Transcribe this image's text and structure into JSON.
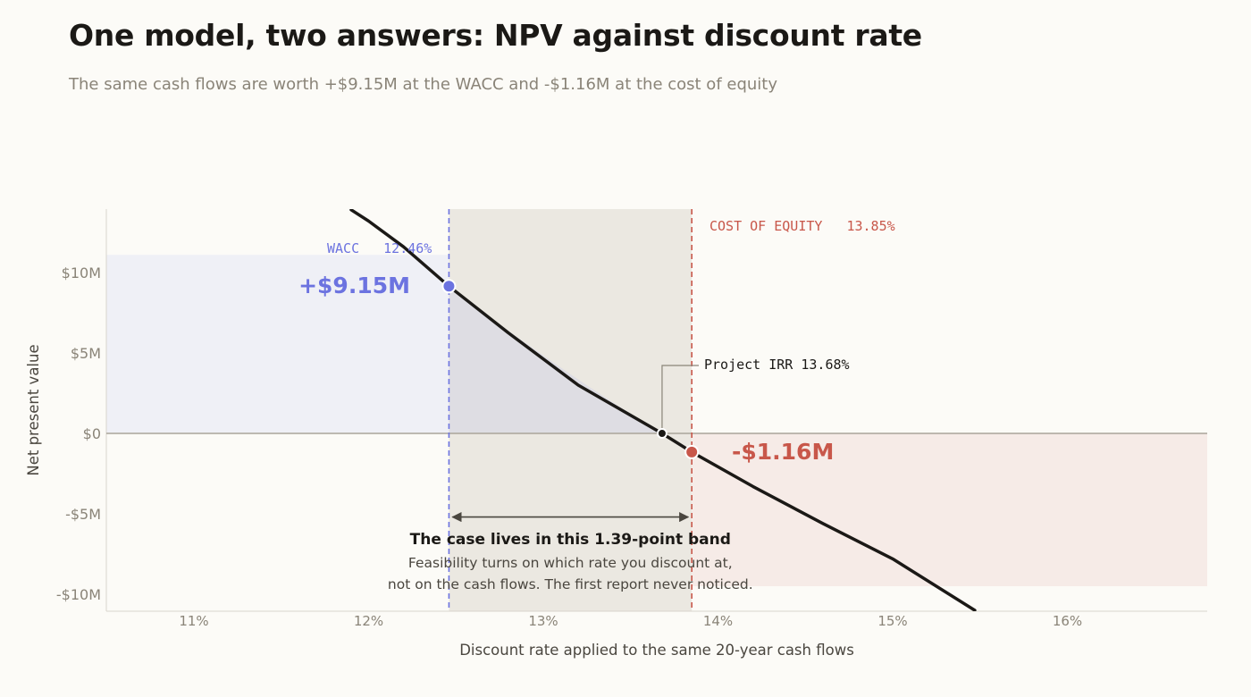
{
  "title": "One model, two answers: NPV against discount rate",
  "subtitle": "The same cash flows are worth +$9.15M at the WACC and -$1.16M at the cost of equity",
  "colors": {
    "background": "#fcfbf7",
    "curve": "#1b1916",
    "wacc": "#6c73e0",
    "cost_of_equity": "#c8574a",
    "band_fill": "#ebe8e1",
    "positive_fill": "#eff0f6",
    "negative_fill": "#f6ebe7",
    "axis_text": "#8a8478"
  },
  "chart_data": {
    "type": "line",
    "xlabel": "Discount rate applied to the same 20-year cash flows",
    "ylabel": "Net present value",
    "xlim": [
      10.5,
      16.8
    ],
    "ylim": [
      -11,
      14
    ],
    "x_ticks": [
      11,
      12,
      13,
      14,
      15,
      16
    ],
    "x_tick_labels": [
      "11%",
      "12%",
      "13%",
      "14%",
      "15%",
      "16%"
    ],
    "y_ticks": [
      10,
      5,
      0,
      -5,
      -10
    ],
    "y_tick_labels": [
      "$10M",
      "$5M",
      "$0",
      "-$5M",
      "-$10M"
    ],
    "grid": false,
    "series": [
      {
        "x": [
          11.9,
          12.0,
          12.2,
          12.46,
          12.8,
          13.2,
          13.68,
          13.85,
          14.2,
          14.6,
          15.0,
          15.47
        ],
        "y": [
          13.9,
          13.2,
          11.6,
          9.15,
          6.25,
          3.0,
          0.0,
          -1.16,
          -3.3,
          -5.6,
          -7.8,
          -11.0
        ]
      }
    ],
    "markers": {
      "wacc": {
        "rate": 12.46,
        "npv": 9.15,
        "label": "WACC",
        "rate_label": "12.46%",
        "value_label": "+$9.15M"
      },
      "cost_of_equity": {
        "rate": 13.85,
        "npv": -1.16,
        "label": "COST OF EQUITY",
        "rate_label": "13.85%",
        "value_label": "-$1.16M"
      },
      "irr": {
        "rate": 13.68,
        "npv": 0,
        "label": "Project IRR 13.68%"
      }
    },
    "shaded_regions": {
      "positive_npv_at_wacc": {
        "x": [
          10.5,
          12.46
        ],
        "y": [
          0,
          11.1
        ]
      },
      "negative_npv_at_coe": {
        "x": [
          13.85,
          16.8
        ],
        "y": [
          -9.5,
          0
        ]
      }
    },
    "band": {
      "from": 12.46,
      "to": 13.85,
      "arrow_npv": -5.2,
      "headline": "The case lives in this 1.39-point band",
      "note_line1": "Feasibility turns on which rate you discount at,",
      "note_line2": "not on the cash flows. The first report never noticed."
    }
  }
}
